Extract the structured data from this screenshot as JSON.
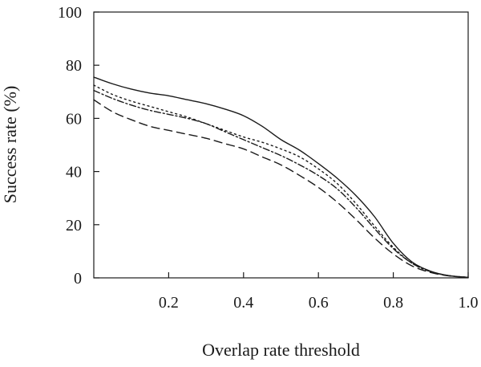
{
  "chart_data": {
    "type": "line",
    "title": "",
    "xlabel": "Overlap rate threshold",
    "ylabel": "Success rate (%)",
    "xlim": [
      0.0,
      1.0
    ],
    "ylim": [
      0,
      100
    ],
    "x_ticks": [
      0.2,
      0.4,
      0.6,
      0.8,
      1.0
    ],
    "x_tick_labels": [
      "0.2",
      "0.4",
      "0.6",
      "0.8",
      "1.0"
    ],
    "y_ticks": [
      0,
      20,
      40,
      60,
      80,
      100
    ],
    "y_tick_labels": [
      "0",
      "20",
      "40",
      "60",
      "80",
      "100"
    ],
    "grid": false,
    "legend": "none",
    "series": [
      {
        "style": "solid",
        "color": "#1a1a1a",
        "x": [
          0.0,
          0.05,
          0.1,
          0.15,
          0.2,
          0.25,
          0.3,
          0.35,
          0.4,
          0.45,
          0.5,
          0.55,
          0.6,
          0.65,
          0.7,
          0.75,
          0.8,
          0.85,
          0.9,
          0.95,
          1.0
        ],
        "y": [
          75.5,
          73,
          71,
          69.5,
          68.5,
          67,
          65.5,
          63.5,
          61,
          57,
          52,
          48,
          43,
          37.5,
          31,
          23,
          13,
          6,
          2.5,
          0.8,
          0.2
        ]
      },
      {
        "style": "dotted",
        "color": "#1a1a1a",
        "x": [
          0.0,
          0.05,
          0.1,
          0.15,
          0.2,
          0.25,
          0.3,
          0.35,
          0.4,
          0.45,
          0.5,
          0.55,
          0.6,
          0.65,
          0.7,
          0.75,
          0.8,
          0.85,
          0.9,
          0.95,
          1.0
        ],
        "y": [
          72.5,
          69,
          66.5,
          64.5,
          62.5,
          60.5,
          58,
          55.5,
          53,
          51,
          48.5,
          45.5,
          41,
          35.5,
          28,
          19.5,
          11.5,
          5.5,
          2.3,
          0.8,
          0.2
        ]
      },
      {
        "style": "dash-dot",
        "color": "#1a1a1a",
        "x": [
          0.0,
          0.05,
          0.1,
          0.15,
          0.2,
          0.25,
          0.3,
          0.35,
          0.4,
          0.45,
          0.5,
          0.55,
          0.6,
          0.65,
          0.7,
          0.75,
          0.8,
          0.85,
          0.9,
          0.95,
          1.0
        ],
        "y": [
          70.5,
          67.5,
          65,
          63,
          61.5,
          60,
          58,
          55,
          52,
          49,
          46,
          42.5,
          38.5,
          33.5,
          26.5,
          18.5,
          11,
          5.5,
          2.3,
          0.8,
          0.2
        ]
      },
      {
        "style": "dashed",
        "color": "#1a1a1a",
        "x": [
          0.0,
          0.05,
          0.1,
          0.15,
          0.2,
          0.25,
          0.3,
          0.35,
          0.4,
          0.45,
          0.5,
          0.55,
          0.6,
          0.65,
          0.7,
          0.75,
          0.8,
          0.85,
          0.9,
          0.95,
          1.0
        ],
        "y": [
          67,
          62.5,
          59.5,
          57,
          55.5,
          54,
          52.5,
          50.5,
          48.5,
          45.5,
          42.5,
          38.5,
          34,
          28.5,
          22,
          15,
          9,
          4.5,
          2,
          0.7,
          0.2
        ]
      }
    ]
  }
}
